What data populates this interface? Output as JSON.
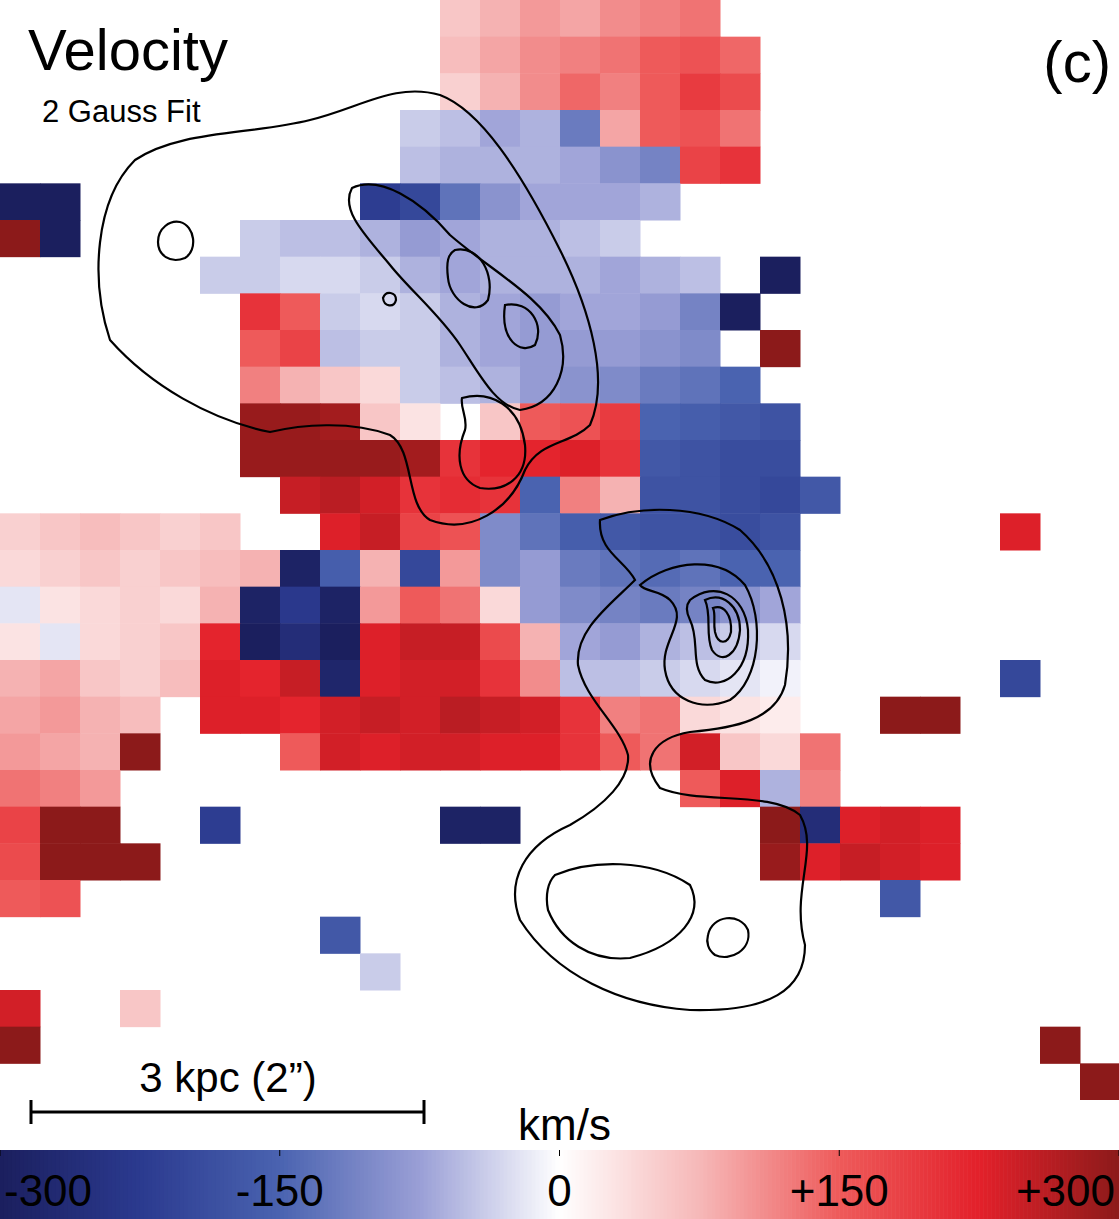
{
  "chart_data": {
    "type": "heatmap",
    "title": "Velocity",
    "subtitle": "2 Gauss Fit",
    "annotations": [
      "(c)",
      "3 kpc (2”)"
    ],
    "tick_labels": false,
    "colorbar": {
      "label": "km/s",
      "range": [
        -300,
        300
      ],
      "ticks": [
        -300,
        -150,
        0,
        {
          "value": 150,
          "label": "+150"
        },
        {
          "value": 300,
          "label": "+300"
        }
      ]
    },
    "cells": [
      [
        null,
        null,
        null,
        null,
        null,
        null,
        null,
        null,
        null,
        null,
        null,
        60,
        80,
        100,
        90,
        110,
        120,
        130,
        null,
        null,
        null,
        null,
        null,
        null,
        null,
        null,
        null,
        null
      ],
      [
        null,
        null,
        null,
        null,
        null,
        null,
        null,
        null,
        null,
        null,
        null,
        70,
        90,
        110,
        120,
        130,
        150,
        160,
        140,
        null,
        null,
        null,
        null,
        null,
        null,
        null,
        null,
        null
      ],
      [
        null,
        null,
        null,
        null,
        null,
        null,
        null,
        null,
        null,
        null,
        null,
        50,
        80,
        110,
        140,
        120,
        150,
        190,
        170,
        null,
        null,
        null,
        null,
        null,
        null,
        null,
        null,
        null
      ],
      [
        null,
        null,
        null,
        null,
        null,
        null,
        null,
        null,
        null,
        null,
        -40,
        -50,
        -70,
        -60,
        -120,
        90,
        150,
        160,
        130,
        null,
        null,
        null,
        null,
        null,
        null,
        null,
        null,
        null
      ],
      [
        null,
        null,
        null,
        null,
        null,
        null,
        null,
        null,
        null,
        null,
        -50,
        -60,
        -60,
        -60,
        -70,
        -90,
        -110,
        180,
        200,
        null,
        null,
        null,
        null,
        null,
        null,
        null,
        null,
        null
      ],
      [
        -300,
        -300,
        null,
        null,
        null,
        null,
        null,
        null,
        null,
        -220,
        -200,
        -130,
        -90,
        -70,
        -70,
        -70,
        -60,
        null,
        null,
        null,
        null,
        null,
        null,
        null,
        null,
        null,
        null,
        null
      ],
      [
        300,
        -300,
        null,
        null,
        null,
        null,
        -40,
        -50,
        -50,
        -60,
        -80,
        -70,
        -60,
        -60,
        -50,
        -40,
        null,
        null,
        null,
        null,
        null,
        null,
        null,
        null,
        null,
        null,
        null,
        null
      ],
      [
        null,
        null,
        null,
        null,
        null,
        -40,
        -40,
        -30,
        -30,
        -40,
        -60,
        -70,
        -60,
        -60,
        -60,
        -70,
        -60,
        -50,
        null,
        -300,
        null,
        null,
        null,
        null,
        null,
        null,
        null,
        null
      ],
      [
        null,
        null,
        null,
        null,
        null,
        null,
        200,
        150,
        -40,
        -30,
        -40,
        -60,
        -70,
        -80,
        -70,
        -70,
        -80,
        -110,
        -300,
        null,
        null,
        null,
        null,
        null,
        null,
        null,
        null,
        null
      ],
      [
        null,
        null,
        null,
        null,
        null,
        null,
        150,
        180,
        -50,
        -40,
        -40,
        -60,
        -70,
        -80,
        -80,
        -80,
        -90,
        -100,
        null,
        300,
        null,
        null,
        null,
        null,
        null,
        null,
        null,
        null
      ],
      [
        null,
        null,
        null,
        null,
        null,
        null,
        120,
        80,
        60,
        40,
        -40,
        -50,
        -60,
        -80,
        -90,
        -100,
        -120,
        -130,
        -150,
        null,
        null,
        null,
        null,
        null,
        null,
        null,
        null,
        null
      ],
      [
        null,
        null,
        null,
        null,
        null,
        null,
        290,
        290,
        280,
        60,
        30,
        null,
        60,
        150,
        160,
        190,
        -150,
        -160,
        -170,
        -180,
        null,
        null,
        null,
        null,
        null,
        null,
        null,
        null
      ],
      [
        null,
        null,
        null,
        null,
        null,
        null,
        290,
        290,
        290,
        290,
        280,
        200,
        220,
        220,
        230,
        200,
        -170,
        -180,
        -190,
        -190,
        null,
        null,
        null,
        null,
        null,
        null,
        null,
        null
      ],
      [
        null,
        null,
        null,
        null,
        null,
        null,
        null,
        250,
        260,
        240,
        200,
        210,
        200,
        -150,
        120,
        80,
        -180,
        -180,
        -190,
        -200,
        -170,
        null,
        null,
        null,
        null,
        null,
        null,
        null
      ],
      [
        50,
        60,
        70,
        60,
        50,
        60,
        null,
        null,
        230,
        250,
        180,
        160,
        -100,
        -130,
        -160,
        -170,
        -180,
        -180,
        -190,
        -180,
        null,
        null,
        null,
        null,
        null,
        230,
        null,
        null
      ],
      [
        40,
        50,
        60,
        50,
        60,
        70,
        80,
        -290,
        -160,
        80,
        -200,
        100,
        -100,
        -80,
        -120,
        -130,
        -140,
        -130,
        -150,
        -150,
        null,
        null,
        null,
        null,
        null,
        null,
        null,
        null
      ],
      [
        -20,
        30,
        40,
        50,
        40,
        80,
        -290,
        -230,
        -290,
        100,
        150,
        130,
        40,
        -80,
        -100,
        -110,
        -120,
        -110,
        -90,
        -70,
        null,
        null,
        null,
        null,
        null,
        null,
        null,
        null
      ],
      [
        30,
        -20,
        40,
        50,
        60,
        220,
        -300,
        -260,
        -300,
        230,
        250,
        250,
        170,
        80,
        -70,
        -80,
        -60,
        -50,
        -40,
        -30,
        null,
        null,
        null,
        null,
        null,
        null,
        null,
        null
      ],
      [
        80,
        90,
        60,
        50,
        70,
        230,
        220,
        250,
        -280,
        230,
        240,
        240,
        200,
        110,
        -50,
        -50,
        -40,
        -30,
        -20,
        -10,
        null,
        null,
        null,
        null,
        null,
        -200,
        null,
        null
      ],
      [
        90,
        100,
        80,
        70,
        null,
        230,
        230,
        220,
        240,
        250,
        240,
        260,
        250,
        240,
        200,
        120,
        130,
        40,
        30,
        20,
        null,
        null,
        300,
        300,
        null,
        null,
        null,
        null
      ],
      [
        100,
        90,
        80,
        300,
        null,
        null,
        null,
        150,
        240,
        230,
        240,
        240,
        230,
        230,
        200,
        150,
        130,
        240,
        60,
        40,
        130,
        null,
        null,
        null,
        null,
        null,
        null,
        null
      ],
      [
        130,
        120,
        100,
        null,
        null,
        null,
        null,
        null,
        null,
        null,
        null,
        null,
        null,
        null,
        null,
        null,
        null,
        150,
        230,
        -60,
        120,
        null,
        null,
        null,
        null,
        null,
        null,
        null
      ],
      [
        180,
        300,
        300,
        null,
        null,
        -220,
        null,
        null,
        null,
        null,
        null,
        -290,
        -290,
        null,
        null,
        null,
        null,
        null,
        null,
        300,
        -260,
        230,
        240,
        230,
        null,
        null,
        null,
        null
      ],
      [
        170,
        300,
        300,
        300,
        null,
        null,
        null,
        null,
        null,
        null,
        null,
        null,
        null,
        null,
        null,
        null,
        null,
        null,
        null,
        290,
        230,
        250,
        240,
        230,
        null,
        null,
        null,
        null
      ],
      [
        150,
        160,
        null,
        null,
        null,
        null,
        null,
        null,
        null,
        null,
        null,
        null,
        null,
        null,
        null,
        null,
        null,
        null,
        null,
        null,
        null,
        null,
        -170,
        null,
        null,
        null,
        null,
        null
      ],
      [
        null,
        null,
        null,
        null,
        null,
        null,
        null,
        null,
        -170,
        null,
        null,
        null,
        null,
        null,
        null,
        null,
        null,
        null,
        null,
        null,
        null,
        null,
        null,
        null,
        null,
        null,
        null,
        null
      ],
      [
        null,
        null,
        null,
        null,
        null,
        null,
        null,
        null,
        null,
        -40,
        null,
        null,
        null,
        null,
        null,
        null,
        null,
        null,
        null,
        null,
        null,
        null,
        null,
        null,
        null,
        null,
        null,
        null
      ],
      [
        240,
        null,
        null,
        60,
        null,
        null,
        null,
        null,
        null,
        null,
        null,
        null,
        null,
        null,
        null,
        null,
        null,
        null,
        null,
        null,
        null,
        null,
        null,
        null,
        null,
        null,
        null,
        null
      ],
      [
        300,
        null,
        null,
        null,
        null,
        null,
        null,
        null,
        null,
        null,
        null,
        null,
        null,
        null,
        null,
        null,
        null,
        null,
        null,
        null,
        null,
        null,
        null,
        null,
        null,
        null,
        300,
        null
      ],
      [
        null,
        null,
        null,
        null,
        null,
        null,
        null,
        null,
        null,
        null,
        null,
        null,
        null,
        null,
        null,
        null,
        null,
        null,
        null,
        null,
        null,
        null,
        null,
        null,
        null,
        null,
        null,
        300
      ]
    ]
  }
}
